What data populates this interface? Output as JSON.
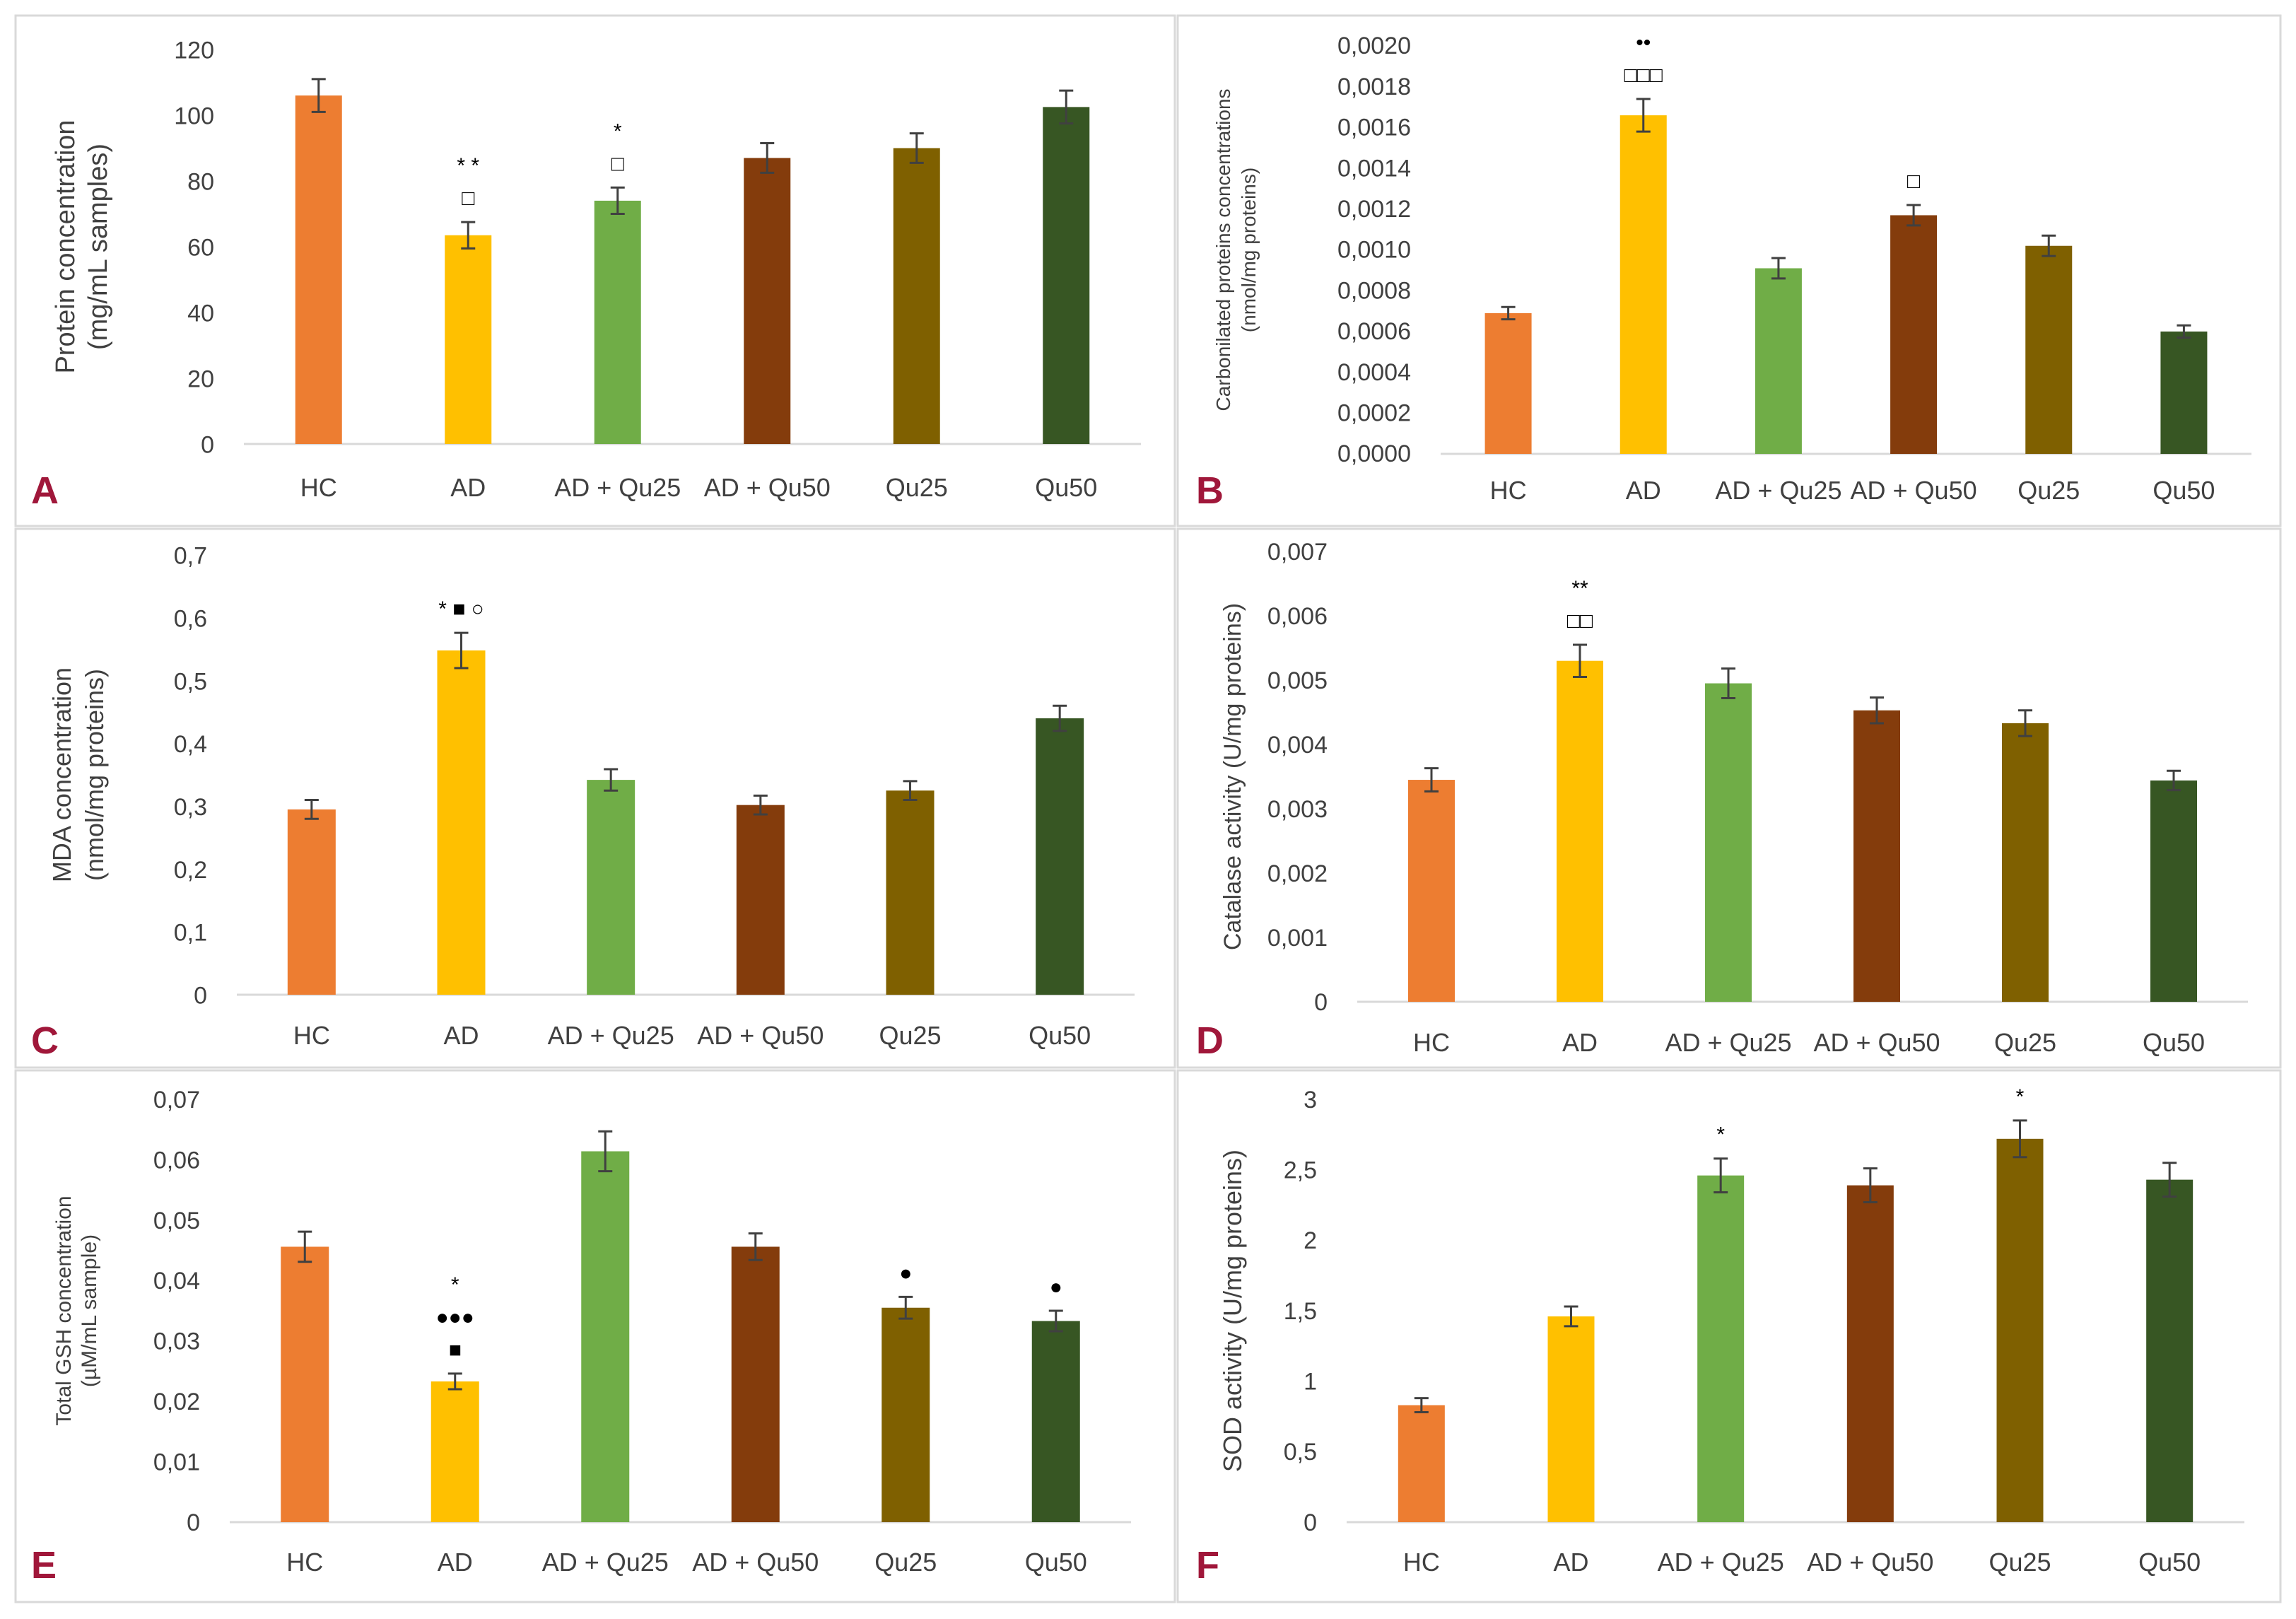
{
  "figure": {
    "colors": [
      "#ED7D31",
      "#FFC000",
      "#70AD47",
      "#843C0C",
      "#7F6000",
      "#375623"
    ],
    "panel_letter_color": "#A0173A"
  },
  "chart_data": [
    {
      "panel": "A",
      "type": "bar",
      "categories": [
        "HC",
        "AD",
        "AD + Qu25",
        "AD + Qu50",
        "Qu25",
        "Qu50"
      ],
      "values": [
        106,
        63.5,
        74,
        87,
        90,
        102.5
      ],
      "errors": [
        5,
        4,
        4,
        4.5,
        4.5,
        5
      ],
      "ylabel": [
        "Protein concentration",
        "(mg/mL samples)"
      ],
      "ylim": [
        0,
        120
      ],
      "yticks": [
        "0",
        "20",
        "40",
        "60",
        "80",
        "100",
        "120"
      ],
      "annotations": [
        [],
        [
          "□",
          "* *"
        ],
        [
          "□",
          "*"
        ],
        [],
        [],
        []
      ]
    },
    {
      "panel": "B",
      "type": "bar",
      "categories": [
        "HC",
        "AD",
        "AD + Qu25",
        "AD + Qu50",
        "Qu25",
        "Qu50"
      ],
      "values": [
        0.00069,
        0.00166,
        0.00091,
        0.00117,
        0.00102,
        0.0006
      ],
      "errors": [
        3e-05,
        8e-05,
        5e-05,
        5e-05,
        5e-05,
        3e-05
      ],
      "ylabel": [
        "Carbonilated proteins concentrations",
        "(nmol/mg proteins)"
      ],
      "ylim": [
        0,
        0.002
      ],
      "yticks": [
        "0,0000",
        "0,0002",
        "0,0004",
        "0,0006",
        "0,0008",
        "0,0010",
        "0,0012",
        "0,0014",
        "0,0016",
        "0,0018",
        "0,0020"
      ],
      "annotations": [
        [],
        [
          "□□□",
          "••"
        ],
        [],
        [
          "□"
        ],
        [],
        []
      ]
    },
    {
      "panel": "C",
      "type": "bar",
      "categories": [
        "HC",
        "AD",
        "AD + Qu25",
        "AD + Qu50",
        "Qu25",
        "Qu50"
      ],
      "values": [
        0.295,
        0.548,
        0.342,
        0.302,
        0.325,
        0.44
      ],
      "errors": [
        0.015,
        0.028,
        0.017,
        0.015,
        0.015,
        0.02
      ],
      "ylabel": [
        "MDA concentration",
        "(nmol/mg proteins)"
      ],
      "ylim": [
        0,
        0.7
      ],
      "yticks": [
        "0",
        "0,1",
        "0,2",
        "0,3",
        "0,4",
        "0,5",
        "0,6",
        "0,7"
      ],
      "annotations": [
        [],
        [
          "* ■ ○"
        ],
        [],
        [],
        [],
        []
      ]
    },
    {
      "panel": "D",
      "type": "bar",
      "categories": [
        "HC",
        "AD",
        "AD + Qu25",
        "AD + Qu50",
        "Qu25",
        "Qu50"
      ],
      "values": [
        0.00345,
        0.0053,
        0.00495,
        0.00453,
        0.00433,
        0.00344
      ],
      "errors": [
        0.00018,
        0.00025,
        0.00023,
        0.0002,
        0.0002,
        0.00015
      ],
      "ylabel": [
        "Catalase activity (U/mg proteins)"
      ],
      "ylim": [
        0,
        0.007
      ],
      "yticks": [
        "0",
        "0,001",
        "0,002",
        "0,003",
        "0,004",
        "0,005",
        "0,006",
        "0,007"
      ],
      "annotations": [
        [],
        [
          "□□",
          "**"
        ],
        [],
        [],
        [],
        []
      ]
    },
    {
      "panel": "E",
      "type": "bar",
      "categories": [
        "HC",
        "AD",
        "AD + Qu25",
        "AD + Qu50",
        "Qu25",
        "Qu50"
      ],
      "values": [
        0.0456,
        0.0233,
        0.0614,
        0.0456,
        0.0355,
        0.0333
      ],
      "errors": [
        0.0025,
        0.0013,
        0.0033,
        0.0022,
        0.0018,
        0.0017
      ],
      "ylabel": [
        "Total GSH concentration",
        "(µM/mL sample)"
      ],
      "ylim": [
        0,
        0.07
      ],
      "yticks": [
        "0",
        "0,01",
        "0,02",
        "0,03",
        "0,04",
        "0,05",
        "0,06",
        "0,07"
      ],
      "annotations": [
        [],
        [
          "■",
          "●●●",
          "*"
        ],
        [],
        [],
        [
          "●"
        ],
        [
          "●"
        ]
      ]
    },
    {
      "panel": "F",
      "type": "bar",
      "categories": [
        "HC",
        "AD",
        "AD + Qu25",
        "AD + Qu50",
        "Qu25",
        "Qu50"
      ],
      "values": [
        0.83,
        1.46,
        2.46,
        2.39,
        2.72,
        2.43
      ],
      "errors": [
        0.05,
        0.07,
        0.12,
        0.12,
        0.13,
        0.12
      ],
      "ylabel": [
        "SOD activity (U/mg proteins)"
      ],
      "ylim": [
        0,
        3
      ],
      "yticks": [
        "0",
        "0,5",
        "1",
        "1,5",
        "2",
        "2,5",
        "3"
      ],
      "annotations": [
        [],
        [],
        [
          "*"
        ],
        [],
        [
          "*"
        ],
        []
      ]
    }
  ]
}
